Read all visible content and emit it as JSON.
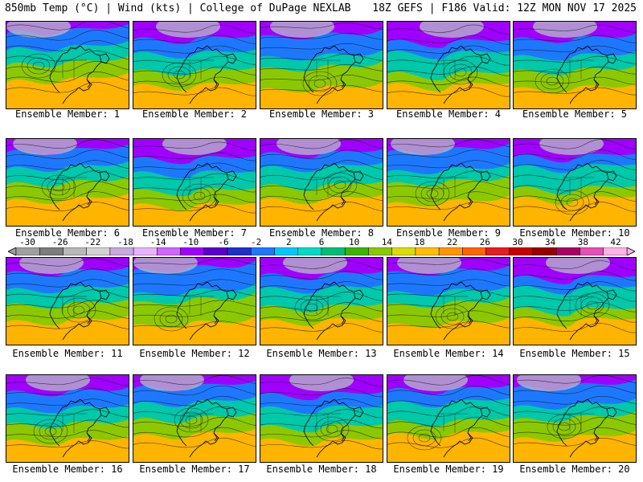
{
  "header": {
    "left": "850mb Temp (°C) | Wind (kts) | College of DuPage NEXLAB",
    "right": "18Z GEFS | F186 Valid: 12Z MON NOV 17 2025"
  },
  "panels": [
    {
      "label": "Ensemble Member: 1"
    },
    {
      "label": "Ensemble Member: 2"
    },
    {
      "label": "Ensemble Member: 3"
    },
    {
      "label": "Ensemble Member: 4"
    },
    {
      "label": "Ensemble Member: 5"
    },
    {
      "label": "Ensemble Member: 6"
    },
    {
      "label": "Ensemble Member: 7"
    },
    {
      "label": "Ensemble Member: 8"
    },
    {
      "label": "Ensemble Member: 9"
    },
    {
      "label": "Ensemble Member: 10"
    },
    {
      "label": "Ensemble Member: 11"
    },
    {
      "label": "Ensemble Member: 12"
    },
    {
      "label": "Ensemble Member: 13"
    },
    {
      "label": "Ensemble Member: 14"
    },
    {
      "label": "Ensemble Member: 15"
    },
    {
      "label": "Ensemble Member: 16"
    },
    {
      "label": "Ensemble Member: 17"
    },
    {
      "label": "Ensemble Member: 18"
    },
    {
      "label": "Ensemble Member: 19"
    },
    {
      "label": "Ensemble Member: 20"
    }
  ],
  "colorbar": {
    "labels": [
      "-30",
      "-26",
      "-22",
      "-18",
      "-14",
      "-10",
      "-6",
      "-2",
      "2",
      "6",
      "10",
      "14",
      "18",
      "22",
      "26",
      "30",
      "34",
      "38",
      "42"
    ],
    "colors": [
      "#a0a0a0",
      "#7d7d7d",
      "#b9b9b9",
      "#d2d2d2",
      "#c8aadc",
      "#e6b4ff",
      "#d264ff",
      "#a000ff",
      "#5a00c8",
      "#1e32c8",
      "#1e78ff",
      "#00c8ff",
      "#00dcc8",
      "#00be78",
      "#3cb400",
      "#8cc800",
      "#dcdc00",
      "#ffbe00",
      "#ff9600",
      "#ff6400",
      "#e61e1e",
      "#c80000",
      "#960000",
      "#aa0064",
      "#e650b4",
      "#ffb4e6"
    ]
  },
  "map_colors": {
    "cold": "#a000ff",
    "cool": "#1e78ff",
    "mild": "#00c8aa",
    "warm": "#8cc800",
    "hot": "#ffb400",
    "coast": "#000000"
  }
}
